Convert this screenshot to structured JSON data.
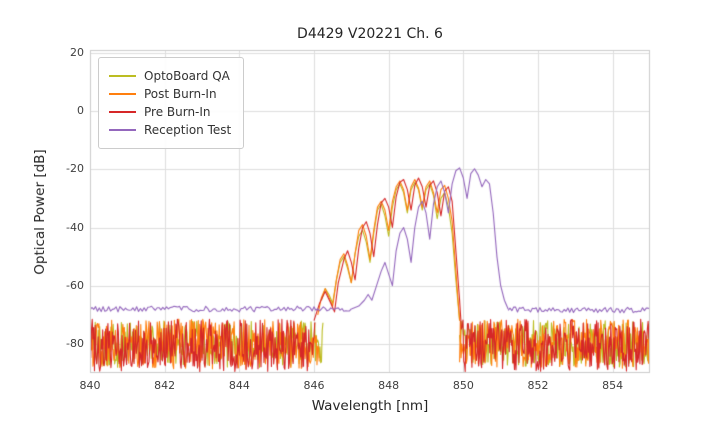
{
  "chart_data": {
    "type": "line",
    "title": "D4429 V20221 Ch. 6",
    "xlabel": "Wavelength [nm]",
    "ylabel": "Optical Power [dB]",
    "xlim": [
      840,
      855
    ],
    "ylim": [
      -90,
      21
    ],
    "x_ticks": [
      840,
      842,
      844,
      846,
      848,
      850,
      852,
      854
    ],
    "y_ticks": [
      20,
      0,
      -20,
      -40,
      -60,
      -80
    ],
    "grid": true,
    "legend_position": "upper left",
    "series": [
      {
        "name": "OptoBoard QA",
        "color": "#bcbd22",
        "noise_floor_db": -80,
        "noise_regions": [
          {
            "x0": 840.0,
            "x1": 846.25,
            "mean": -80,
            "amp": 8.0,
            "step": 0.02,
            "seed": 101
          },
          {
            "x0": 849.9,
            "x1": 855.0,
            "mean": -80,
            "amp": 8.0,
            "step": 0.02,
            "seed": 102
          }
        ],
        "points": [
          [
            846.2,
            -65
          ],
          [
            846.3,
            -61
          ],
          [
            846.4,
            -63
          ],
          [
            846.5,
            -66
          ],
          [
            846.6,
            -58
          ],
          [
            846.7,
            -52
          ],
          [
            846.8,
            -50
          ],
          [
            846.9,
            -54
          ],
          [
            847.0,
            -59
          ],
          [
            847.1,
            -49
          ],
          [
            847.2,
            -43
          ],
          [
            847.3,
            -41
          ],
          [
            847.4,
            -45
          ],
          [
            847.5,
            -52
          ],
          [
            847.6,
            -42
          ],
          [
            847.7,
            -34
          ],
          [
            847.8,
            -32
          ],
          [
            847.9,
            -36
          ],
          [
            848.0,
            -43
          ],
          [
            848.1,
            -33
          ],
          [
            848.2,
            -27
          ],
          [
            848.3,
            -25
          ],
          [
            848.4,
            -28
          ],
          [
            848.5,
            -35
          ],
          [
            848.6,
            -27
          ],
          [
            848.7,
            -24.5
          ],
          [
            848.8,
            -27
          ],
          [
            848.9,
            -34
          ],
          [
            849.0,
            -27
          ],
          [
            849.1,
            -25
          ],
          [
            849.2,
            -29
          ],
          [
            849.3,
            -37
          ],
          [
            849.4,
            -30
          ],
          [
            849.5,
            -28
          ],
          [
            849.6,
            -33
          ],
          [
            849.7,
            -42
          ],
          [
            849.8,
            -58
          ],
          [
            849.9,
            -72
          ]
        ]
      },
      {
        "name": "Post Burn-In",
        "color": "#ff7f0e",
        "noise_floor_db": -80,
        "noise_regions": [
          {
            "x0": 840.0,
            "x1": 846.15,
            "mean": -80,
            "amp": 8.5,
            "step": 0.02,
            "seed": 201
          },
          {
            "x0": 849.9,
            "x1": 855.0,
            "mean": -80,
            "amp": 8.5,
            "step": 0.02,
            "seed": 202
          }
        ],
        "points": [
          [
            846.1,
            -70
          ],
          [
            846.2,
            -64
          ],
          [
            846.3,
            -61
          ],
          [
            846.4,
            -64
          ],
          [
            846.5,
            -67
          ],
          [
            846.6,
            -58
          ],
          [
            846.7,
            -51
          ],
          [
            846.8,
            -49
          ],
          [
            846.9,
            -53
          ],
          [
            847.0,
            -59
          ],
          [
            847.1,
            -49
          ],
          [
            847.2,
            -41
          ],
          [
            847.3,
            -39
          ],
          [
            847.4,
            -43
          ],
          [
            847.5,
            -51
          ],
          [
            847.6,
            -41
          ],
          [
            847.7,
            -33
          ],
          [
            847.8,
            -31
          ],
          [
            847.9,
            -34
          ],
          [
            848.0,
            -41
          ],
          [
            848.1,
            -31
          ],
          [
            848.2,
            -26
          ],
          [
            848.3,
            -24
          ],
          [
            848.4,
            -27
          ],
          [
            848.5,
            -34
          ],
          [
            848.6,
            -26
          ],
          [
            848.7,
            -23.5
          ],
          [
            848.8,
            -26.5
          ],
          [
            848.9,
            -33
          ],
          [
            849.0,
            -26
          ],
          [
            849.1,
            -24
          ],
          [
            849.2,
            -28
          ],
          [
            849.3,
            -35
          ],
          [
            849.4,
            -27
          ],
          [
            849.5,
            -25.5
          ],
          [
            849.6,
            -30
          ],
          [
            849.7,
            -38
          ],
          [
            849.8,
            -55
          ],
          [
            849.9,
            -72
          ]
        ]
      },
      {
        "name": "Pre Burn-In",
        "color": "#d62728",
        "noise_floor_db": -80.5,
        "noise_regions": [
          {
            "x0": 840.0,
            "x1": 846.05,
            "mean": -80.5,
            "amp": 9.0,
            "step": 0.02,
            "seed": 301
          },
          {
            "x0": 849.97,
            "x1": 855.0,
            "mean": -80.5,
            "amp": 9.0,
            "step": 0.02,
            "seed": 302
          }
        ],
        "points": [
          [
            846.0,
            -72
          ],
          [
            846.15,
            -66
          ],
          [
            846.3,
            -62
          ],
          [
            846.45,
            -66
          ],
          [
            846.55,
            -69
          ],
          [
            846.65,
            -59
          ],
          [
            846.8,
            -51
          ],
          [
            846.9,
            -48
          ],
          [
            847.0,
            -52
          ],
          [
            847.1,
            -58
          ],
          [
            847.2,
            -47
          ],
          [
            847.3,
            -40
          ],
          [
            847.4,
            -38
          ],
          [
            847.5,
            -42
          ],
          [
            847.6,
            -50
          ],
          [
            847.7,
            -39
          ],
          [
            847.8,
            -31.5
          ],
          [
            847.9,
            -30
          ],
          [
            848.0,
            -33
          ],
          [
            848.1,
            -40
          ],
          [
            848.2,
            -29.5
          ],
          [
            848.3,
            -24.5
          ],
          [
            848.4,
            -23.5
          ],
          [
            848.5,
            -27
          ],
          [
            848.6,
            -34
          ],
          [
            848.7,
            -25.5
          ],
          [
            848.8,
            -23
          ],
          [
            848.9,
            -26
          ],
          [
            849.0,
            -33
          ],
          [
            849.1,
            -25.5
          ],
          [
            849.2,
            -24
          ],
          [
            849.3,
            -28
          ],
          [
            849.4,
            -36
          ],
          [
            849.5,
            -27.5
          ],
          [
            849.6,
            -26
          ],
          [
            849.7,
            -31
          ],
          [
            849.8,
            -48
          ],
          [
            849.9,
            -65
          ],
          [
            849.95,
            -75
          ]
        ]
      },
      {
        "name": "Reception Test",
        "color": "#9467bd",
        "noise_floor_db": -68,
        "noise_regions": [
          {
            "x0": 840.0,
            "x1": 847.0,
            "mean": -68,
            "amp": 1.0,
            "step": 0.05,
            "seed": 401
          },
          {
            "x0": 851.2,
            "x1": 855.0,
            "mean": -68.3,
            "amp": 1.0,
            "step": 0.05,
            "seed": 402
          }
        ],
        "points": [
          [
            847.0,
            -68
          ],
          [
            847.2,
            -67
          ],
          [
            847.35,
            -65
          ],
          [
            847.45,
            -63
          ],
          [
            847.55,
            -65
          ],
          [
            847.65,
            -61
          ],
          [
            847.8,
            -55
          ],
          [
            847.9,
            -52
          ],
          [
            848.0,
            -56
          ],
          [
            848.1,
            -60
          ],
          [
            848.2,
            -48
          ],
          [
            848.3,
            -42
          ],
          [
            848.4,
            -40
          ],
          [
            848.5,
            -44
          ],
          [
            848.6,
            -52
          ],
          [
            848.7,
            -40
          ],
          [
            848.8,
            -33
          ],
          [
            848.9,
            -31
          ],
          [
            849.0,
            -35
          ],
          [
            849.1,
            -44
          ],
          [
            849.2,
            -32
          ],
          [
            849.3,
            -26
          ],
          [
            849.4,
            -24
          ],
          [
            849.5,
            -28
          ],
          [
            849.6,
            -35
          ],
          [
            849.7,
            -25
          ],
          [
            849.8,
            -20.5
          ],
          [
            849.9,
            -19.5
          ],
          [
            850.0,
            -23
          ],
          [
            850.1,
            -30
          ],
          [
            850.2,
            -21.5
          ],
          [
            850.3,
            -19.8
          ],
          [
            850.4,
            -22
          ],
          [
            850.5,
            -26
          ],
          [
            850.6,
            -23.5
          ],
          [
            850.7,
            -25
          ],
          [
            850.8,
            -35
          ],
          [
            850.9,
            -50
          ],
          [
            851.0,
            -60
          ],
          [
            851.1,
            -65
          ],
          [
            851.2,
            -68
          ]
        ]
      }
    ]
  }
}
